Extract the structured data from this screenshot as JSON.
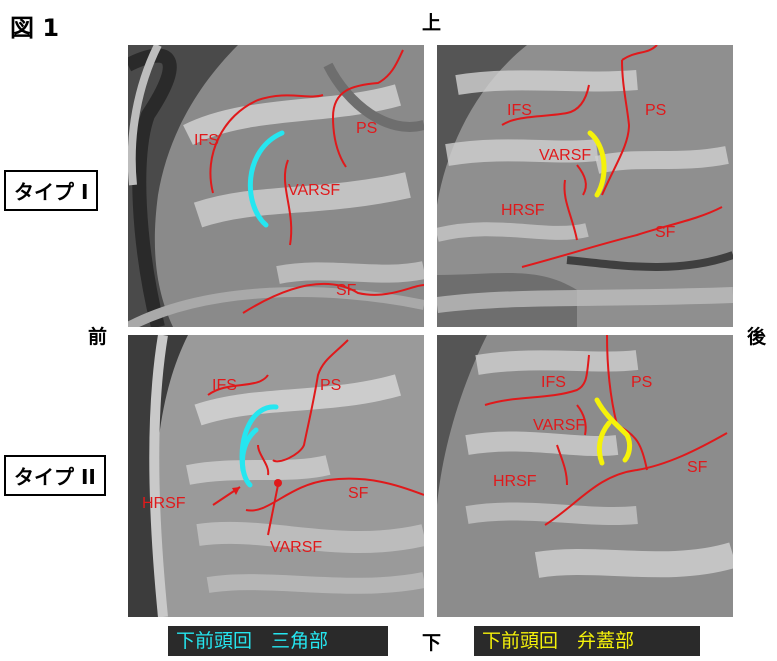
{
  "figure_label": "図 1",
  "directions": {
    "top": "上",
    "bottom": "下",
    "front": "前",
    "back": "後"
  },
  "types": {
    "type1": "タイプ I",
    "type2": "タイプ II"
  },
  "panels": {
    "p1": {
      "labels": {
        "ifs": "IFS",
        "ps": "PS",
        "varsf": "VARSF",
        "sf": "SF"
      }
    },
    "p2": {
      "labels": {
        "ifs": "IFS",
        "ps": "PS",
        "varsf": "VARSF",
        "hrsf": "HRSF",
        "sf": "SF"
      }
    },
    "p3": {
      "labels": {
        "ifs": "IFS",
        "ps": "PS",
        "hrsf": "HRSF",
        "sf": "SF",
        "varsf": "VARSF"
      }
    },
    "p4": {
      "labels": {
        "ifs": "IFS",
        "ps": "PS",
        "varsf": "VARSF",
        "hrsf": "HRSF",
        "sf": "SF"
      }
    }
  },
  "legend": {
    "triangular": "下前頭回　三角部",
    "opercular": "下前頭回　弁蓋部"
  },
  "colors": {
    "sulcus": "#e0191b",
    "triangular": "#25e6f0",
    "opercular": "#f5f20a"
  }
}
